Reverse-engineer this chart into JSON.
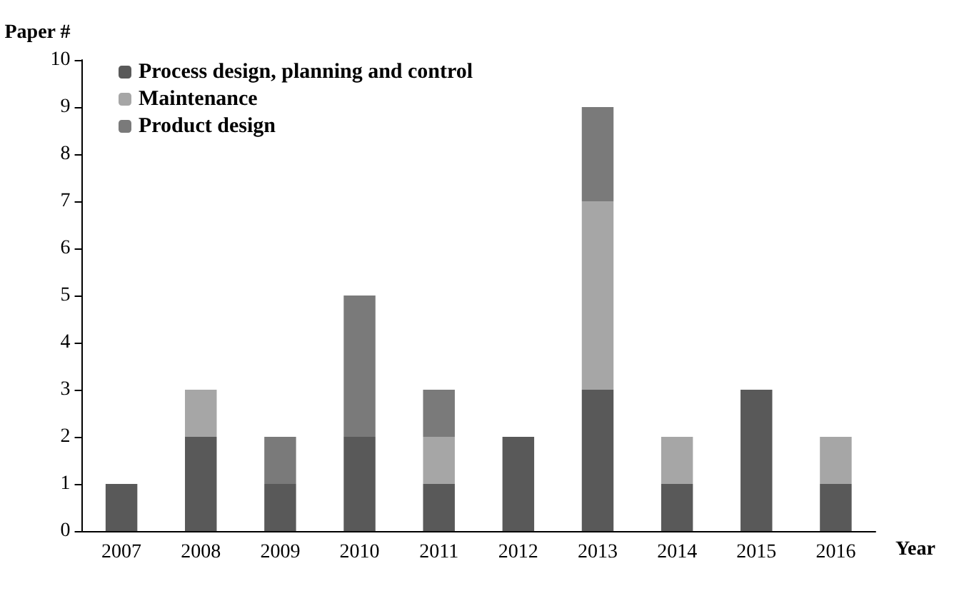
{
  "chart_data": {
    "type": "bar",
    "stacked": true,
    "xlabel": "Year",
    "ylabel": "Paper #",
    "categories": [
      "2007",
      "2008",
      "2009",
      "2010",
      "2011",
      "2012",
      "2013",
      "2014",
      "2015",
      "2016"
    ],
    "series": [
      {
        "name": "Process design, planning and control",
        "color": "#595959",
        "values": [
          1,
          2,
          1,
          2,
          1,
          2,
          3,
          1,
          3,
          1
        ]
      },
      {
        "name": "Maintenance",
        "color": "#a6a6a6",
        "values": [
          0,
          1,
          0,
          0,
          1,
          0,
          4,
          1,
          0,
          1
        ]
      },
      {
        "name": "Product design",
        "color": "#7a7a7a",
        "values": [
          0,
          0,
          1,
          3,
          1,
          0,
          2,
          0,
          0,
          0
        ]
      }
    ],
    "ylim": [
      0,
      10
    ],
    "yticks": [
      0,
      1,
      2,
      3,
      4,
      5,
      6,
      7,
      8,
      9,
      10
    ],
    "grid": false,
    "legend": "top left"
  }
}
